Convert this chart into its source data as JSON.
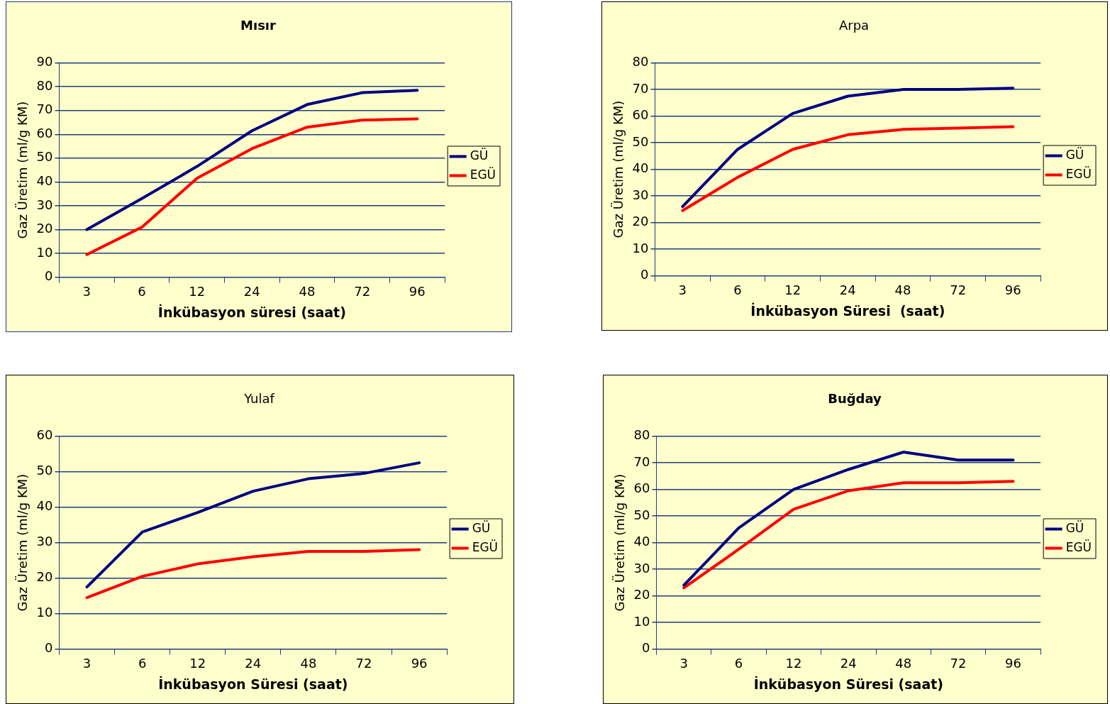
{
  "chart_data": [
    {
      "type": "line",
      "title": "Mısır",
      "xlabel": "İnkübasyon süresi (saat)",
      "ylabel": "Gaz Üretim (ml/g KM)",
      "categories": [
        "3",
        "6",
        "12",
        "24",
        "48",
        "72",
        "96"
      ],
      "ylim": [
        0,
        90
      ],
      "yticks": [
        0,
        10,
        20,
        30,
        40,
        50,
        60,
        70,
        80,
        90
      ],
      "grid": "y",
      "legend": "right",
      "marker": "none",
      "series": [
        {
          "name": "GÜ",
          "color": "#000080",
          "values": [
            20,
            33,
            46.5,
            61.5,
            72.5,
            77.5,
            78.5
          ]
        },
        {
          "name": "EGÜ",
          "color": "#ff0000",
          "values": [
            9.5,
            21,
            41.5,
            54,
            63,
            66,
            66.5
          ]
        }
      ]
    },
    {
      "type": "line",
      "title": "Arpa",
      "xlabel": "İnkübasyon Süresi  (saat)",
      "ylabel": "Gaz Üretim (ml/g KM)",
      "categories": [
        "3",
        "6",
        "12",
        "24",
        "48",
        "72",
        "96"
      ],
      "ylim": [
        0,
        80
      ],
      "yticks": [
        0,
        10,
        20,
        30,
        40,
        50,
        60,
        70,
        80
      ],
      "grid": "y",
      "legend": "right",
      "marker": "none",
      "series": [
        {
          "name": "GÜ",
          "color": "#000080",
          "values": [
            26,
            47.5,
            61,
            67.5,
            70,
            70,
            70.5
          ]
        },
        {
          "name": "EGÜ",
          "color": "#ff0000",
          "values": [
            24.5,
            37,
            47.5,
            53,
            55,
            55.5,
            56
          ]
        }
      ]
    },
    {
      "type": "line",
      "title": "Yulaf",
      "xlabel": "İnkübasyon Süresi (saat)",
      "ylabel": "Gaz Üretim (ml/g KM)",
      "categories": [
        "3",
        "6",
        "12",
        "24",
        "48",
        "72",
        "96"
      ],
      "ylim": [
        0,
        60
      ],
      "yticks": [
        0,
        10,
        20,
        30,
        40,
        50,
        60
      ],
      "grid": "y",
      "legend": "right",
      "marker": "none",
      "series": [
        {
          "name": "GÜ",
          "color": "#000080",
          "values": [
            17.5,
            33,
            38.5,
            44.5,
            48,
            49.5,
            52.5
          ]
        },
        {
          "name": "EGÜ",
          "color": "#ff0000",
          "values": [
            14.5,
            20.5,
            24,
            26,
            27.5,
            27.5,
            28
          ]
        }
      ]
    },
    {
      "type": "line",
      "title": "Buğday",
      "xlabel": "İnkübasyon Süresi (saat)",
      "ylabel": "Gaz Üretim (ml/g KM)",
      "categories": [
        "3",
        "6",
        "12",
        "24",
        "48",
        "72",
        "96"
      ],
      "ylim": [
        0,
        80
      ],
      "yticks": [
        0,
        10,
        20,
        30,
        40,
        50,
        60,
        70,
        80
      ],
      "grid": "y",
      "legend": "right",
      "marker": "none",
      "series": [
        {
          "name": "GÜ",
          "color": "#000080",
          "values": [
            24,
            45.5,
            60,
            67.5,
            74,
            71,
            71
          ]
        },
        {
          "name": "EGÜ",
          "color": "#ff0000",
          "values": [
            23,
            37.5,
            52.5,
            59.5,
            62.5,
            62.5,
            63
          ]
        }
      ]
    }
  ]
}
